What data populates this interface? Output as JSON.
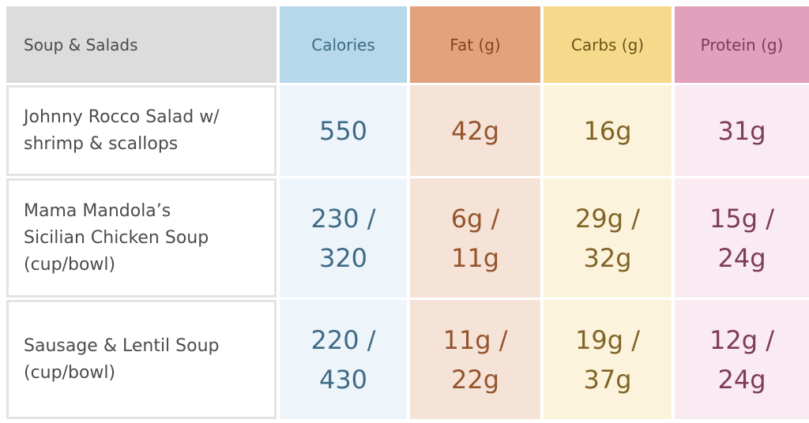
{
  "table": {
    "headers": [
      "Soup & Salads",
      "Calories",
      "Fat (g)",
      "Carbs (g)",
      "Protein (g)"
    ],
    "rows": [
      {
        "item": "Johnny Rocco Salad w/\nshrimp & scallops",
        "calories": "550",
        "fat": "42g",
        "carbs": "16g",
        "protein": "31g"
      },
      {
        "item": "Mama Mandola’s\nSicilian Chicken Soup\n(cup/bowl)",
        "calories": "230 /\n320",
        "fat": "6g /\n11g",
        "carbs": "29g /\n32g",
        "protein": "15g /\n24g"
      },
      {
        "item": "Sausage & Lentil Soup\n(cup/bowl)",
        "calories": "220 /\n430",
        "fat": "11g /\n22g",
        "carbs": "19g /\n37g",
        "protein": "12g /\n24g"
      }
    ],
    "colors": {
      "calories_header": "#b7d8ea",
      "fat_header": "#e2a37c",
      "carbs_header": "#f6da8c",
      "protein_header": "#e1a1bc",
      "calories_cell": "#edf5fb",
      "fat_cell": "#f6e3d7",
      "carbs_cell": "#fcf3dc",
      "protein_cell": "#faeaf1",
      "item_header": "#dcdcdc"
    }
  }
}
